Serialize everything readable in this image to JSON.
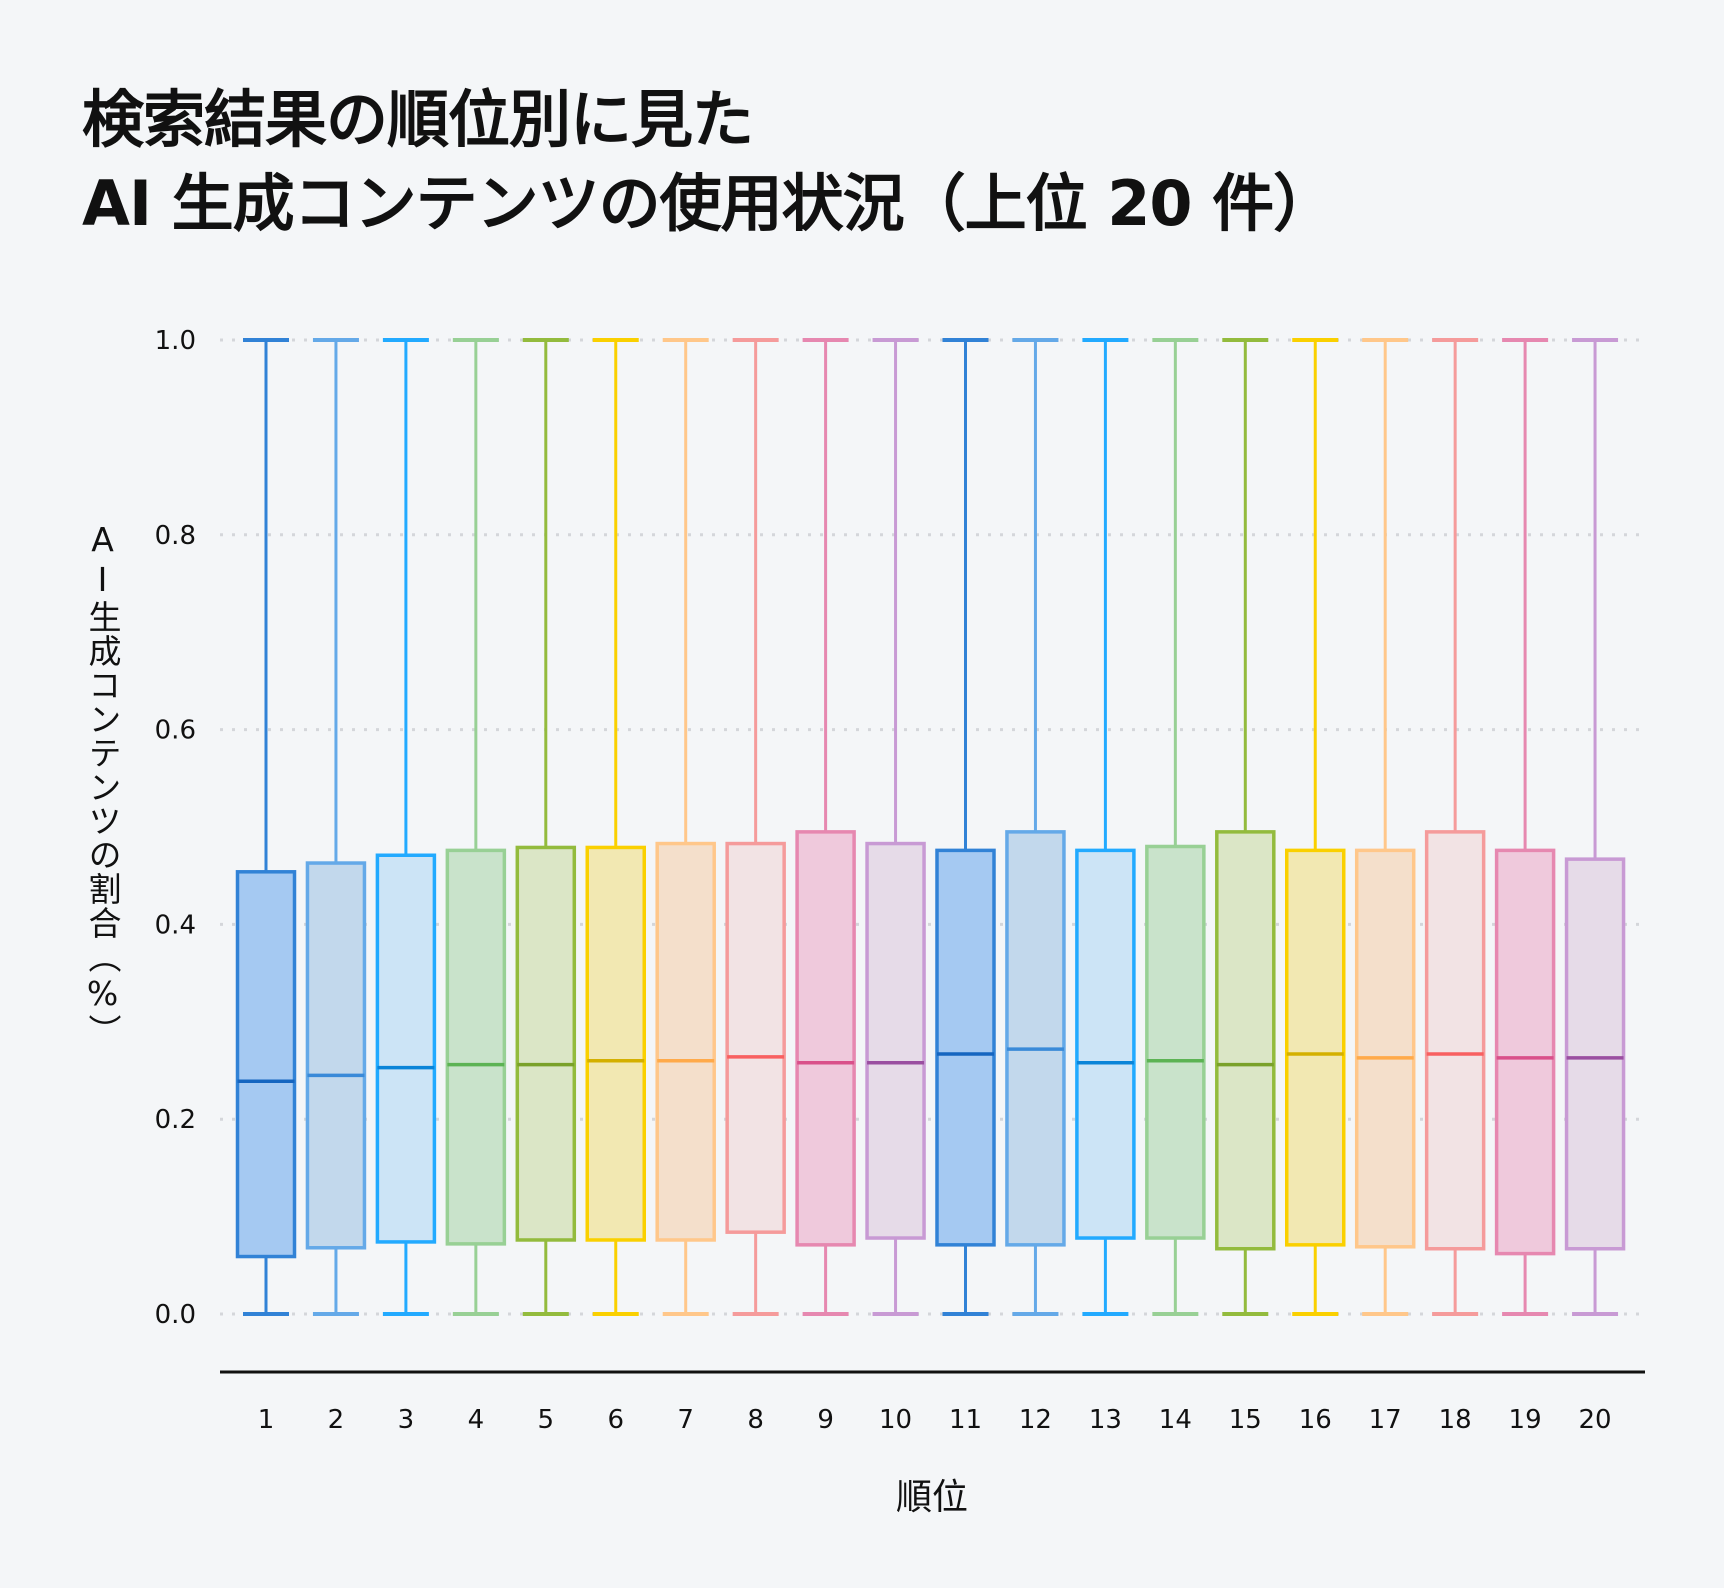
{
  "chart_data": {
    "type": "box",
    "title": [
      "検索結果の順位別に見た",
      "AI 生成コンテンツの使用状況（上位 20 件）"
    ],
    "xlabel": "順位",
    "ylabel": "AI生成コンテンツの割合（%）",
    "ylim": [
      0,
      1.0
    ],
    "yticks": [
      "0.0",
      "0.2",
      "0.4",
      "0.6",
      "0.8",
      "1.0"
    ],
    "grid": "horizontal-dotted",
    "categories": [
      "1",
      "2",
      "3",
      "4",
      "5",
      "6",
      "7",
      "8",
      "9",
      "10",
      "11",
      "12",
      "13",
      "14",
      "15",
      "16",
      "17",
      "18",
      "19",
      "20"
    ],
    "boxes": [
      {
        "min": 0,
        "q1": 0.059,
        "median": 0.239,
        "q3": 0.454,
        "max": 1
      },
      {
        "min": 0,
        "q1": 0.068,
        "median": 0.245,
        "q3": 0.463,
        "max": 1
      },
      {
        "min": 0,
        "q1": 0.074,
        "median": 0.253,
        "q3": 0.471,
        "max": 1
      },
      {
        "min": 0,
        "q1": 0.072,
        "median": 0.256,
        "q3": 0.476,
        "max": 1
      },
      {
        "min": 0,
        "q1": 0.076,
        "median": 0.256,
        "q3": 0.479,
        "max": 1
      },
      {
        "min": 0,
        "q1": 0.076,
        "median": 0.26,
        "q3": 0.479,
        "max": 1
      },
      {
        "min": 0,
        "q1": 0.076,
        "median": 0.26,
        "q3": 0.483,
        "max": 1
      },
      {
        "min": 0,
        "q1": 0.084,
        "median": 0.264,
        "q3": 0.483,
        "max": 1
      },
      {
        "min": 0,
        "q1": 0.071,
        "median": 0.258,
        "q3": 0.495,
        "max": 1
      },
      {
        "min": 0,
        "q1": 0.078,
        "median": 0.258,
        "q3": 0.483,
        "max": 1
      },
      {
        "min": 0,
        "q1": 0.071,
        "median": 0.267,
        "q3": 0.476,
        "max": 1
      },
      {
        "min": 0,
        "q1": 0.071,
        "median": 0.272,
        "q3": 0.495,
        "max": 1
      },
      {
        "min": 0,
        "q1": 0.078,
        "median": 0.258,
        "q3": 0.476,
        "max": 1
      },
      {
        "min": 0,
        "q1": 0.078,
        "median": 0.26,
        "q3": 0.48,
        "max": 1
      },
      {
        "min": 0,
        "q1": 0.067,
        "median": 0.256,
        "q3": 0.495,
        "max": 1
      },
      {
        "min": 0,
        "q1": 0.071,
        "median": 0.267,
        "q3": 0.476,
        "max": 1
      },
      {
        "min": 0,
        "q1": 0.069,
        "median": 0.263,
        "q3": 0.476,
        "max": 1
      },
      {
        "min": 0,
        "q1": 0.067,
        "median": 0.267,
        "q3": 0.495,
        "max": 1
      },
      {
        "min": 0,
        "q1": 0.062,
        "median": 0.263,
        "q3": 0.476,
        "max": 1
      },
      {
        "min": 0,
        "q1": 0.067,
        "median": 0.263,
        "q3": 0.467,
        "max": 1
      }
    ],
    "palette": [
      {
        "stroke": "#3182d6",
        "fill": "#a5c9f2",
        "median": "#1565c0"
      },
      {
        "stroke": "#64a9e8",
        "fill": "#c2d8ec",
        "median": "#3a8ad8"
      },
      {
        "stroke": "#22aaff",
        "fill": "#cce4f6",
        "median": "#0a84d8"
      },
      {
        "stroke": "#98d095",
        "fill": "#c9e3cb",
        "median": "#5cb354"
      },
      {
        "stroke": "#93bb3d",
        "fill": "#dbe6c6",
        "median": "#7aa12a"
      },
      {
        "stroke": "#fad000",
        "fill": "#f2e8b2",
        "median": "#d4b000"
      },
      {
        "stroke": "#ffc78a",
        "fill": "#f4dfcb",
        "median": "#ffaa4a"
      },
      {
        "stroke": "#f59b9b",
        "fill": "#f2e3e4",
        "median": "#f86060"
      },
      {
        "stroke": "#e688b0",
        "fill": "#efc9dc",
        "median": "#d9508a"
      },
      {
        "stroke": "#c89ad4",
        "fill": "#e6dbe8",
        "median": "#9a4fa0"
      }
    ]
  }
}
